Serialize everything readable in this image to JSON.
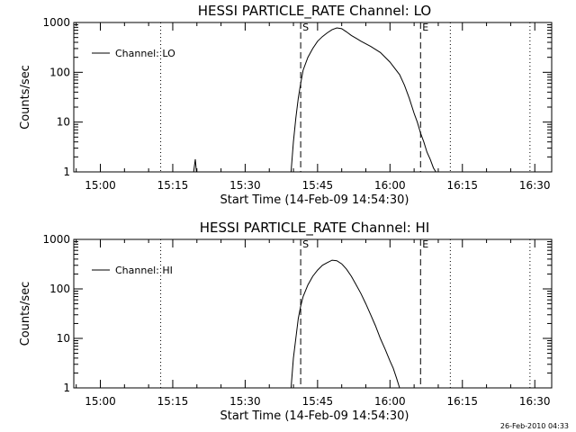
{
  "footer": {
    "timestamp": "26-Feb-2010 04:33"
  },
  "chart_data": [
    {
      "type": "line",
      "title": "HESSI PARTICLE_RATE Channel: LO",
      "xlabel": "Start Time (14-Feb-09 14:54:30)",
      "ylabel": "Counts/sec",
      "y_scale": "log",
      "ylim": [
        1,
        1000
      ],
      "xlim": [
        "14:54:30",
        "16:33:30"
      ],
      "x_tick_labels": [
        "15:00",
        "15:15",
        "15:30",
        "15:45",
        "16:00",
        "16:15",
        "16:30"
      ],
      "y_tick_labels": [
        "1",
        "10",
        "100",
        "1000"
      ],
      "legend": {
        "position": "top-left",
        "entries": [
          "Channel: LO"
        ]
      },
      "markers": [
        {
          "label": "S",
          "time": "15:41:30",
          "style": "dashed"
        },
        {
          "label": "E",
          "time": "16:06:20",
          "style": "dashed"
        }
      ],
      "dotted_lines": [
        "15:12:30",
        "16:12:30",
        "16:29:00"
      ],
      "series": [
        {
          "name": "Channel: LO",
          "x": [
            "15:19:20",
            "15:19:40",
            "15:19:55",
            "15:39:30",
            "15:40:00",
            "15:40:30",
            "15:41:00",
            "15:41:30",
            "15:42:00",
            "15:43:00",
            "15:44:00",
            "15:45:00",
            "15:46:00",
            "15:47:00",
            "15:48:00",
            "15:49:00",
            "15:50:00",
            "15:51:00",
            "15:52:00",
            "15:53:00",
            "15:54:00",
            "15:56:00",
            "15:58:00",
            "16:00:00",
            "16:02:00",
            "16:03:00",
            "16:04:00",
            "16:05:00",
            "16:05:40",
            "16:06:20",
            "16:07:00",
            "16:07:40",
            "16:08:20",
            "16:09:00",
            "16:09:30"
          ],
          "y": [
            1,
            1.8,
            1,
            1,
            4,
            12,
            30,
            60,
            110,
            200,
            300,
            420,
            520,
            620,
            720,
            780,
            750,
            650,
            550,
            480,
            420,
            330,
            250,
            160,
            90,
            55,
            30,
            15,
            10,
            6,
            4,
            2.5,
            1.8,
            1.2,
            1
          ]
        }
      ]
    },
    {
      "type": "line",
      "title": "HESSI PARTICLE_RATE Channel: HI",
      "xlabel": "Start Time (14-Feb-09 14:54:30)",
      "ylabel": "Counts/sec",
      "y_scale": "log",
      "ylim": [
        1,
        1000
      ],
      "xlim": [
        "14:54:30",
        "16:33:30"
      ],
      "x_tick_labels": [
        "15:00",
        "15:15",
        "15:30",
        "15:45",
        "16:00",
        "16:15",
        "16:30"
      ],
      "y_tick_labels": [
        "1",
        "10",
        "100",
        "1000"
      ],
      "legend": {
        "position": "top-left",
        "entries": [
          "Channel: HI"
        ]
      },
      "markers": [
        {
          "label": "S",
          "time": "15:41:30",
          "style": "dashed"
        },
        {
          "label": "E",
          "time": "16:06:20",
          "style": "dashed"
        }
      ],
      "dotted_lines": [
        "15:12:30",
        "16:12:30",
        "16:29:00"
      ],
      "series": [
        {
          "name": "Channel: HI",
          "x": [
            "15:39:30",
            "15:40:00",
            "15:40:30",
            "15:41:00",
            "15:41:30",
            "15:42:00",
            "15:43:00",
            "15:44:00",
            "15:45:00",
            "15:46:00",
            "15:47:00",
            "15:48:00",
            "15:49:00",
            "15:50:00",
            "15:51:00",
            "15:52:00",
            "15:53:00",
            "15:54:00",
            "15:55:00",
            "15:56:00",
            "15:57:00",
            "15:58:00",
            "15:59:00",
            "16:00:00",
            "16:00:40",
            "16:01:20",
            "16:02:00"
          ],
          "y": [
            1,
            4,
            10,
            25,
            45,
            70,
            120,
            180,
            240,
            300,
            340,
            380,
            370,
            320,
            250,
            180,
            120,
            80,
            50,
            30,
            18,
            10,
            6,
            3.5,
            2.5,
            1.6,
            1
          ]
        }
      ]
    }
  ]
}
